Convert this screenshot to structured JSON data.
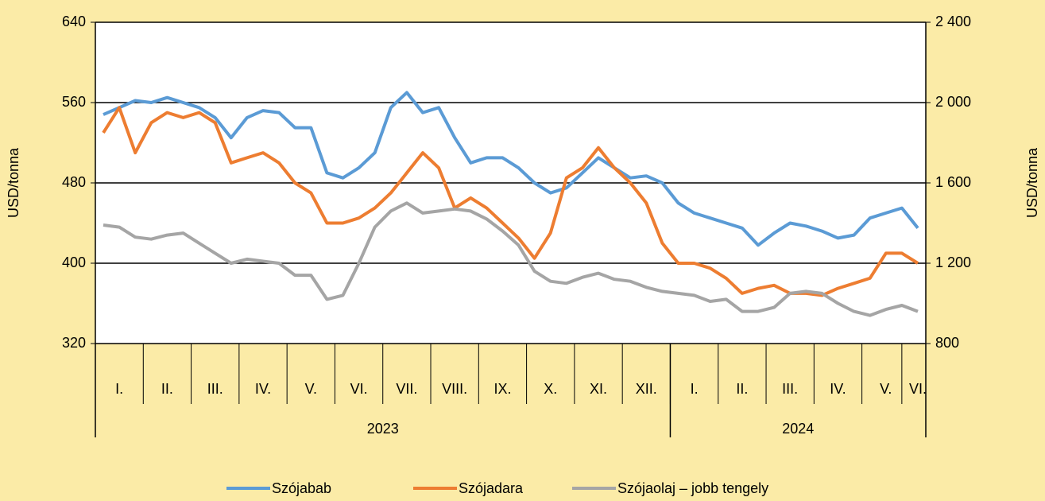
{
  "chart_data": {
    "type": "line",
    "ylabel": "USD/tonna",
    "y2label": "USD/tonna",
    "categories": [
      null,
      "I.",
      null,
      null,
      "II.",
      null,
      null,
      "III.",
      null,
      null,
      "IV.",
      null,
      null,
      "V.",
      null,
      null,
      "VI.",
      null,
      null,
      "VII.",
      null,
      null,
      "VIII.",
      null,
      null,
      "IX.",
      null,
      null,
      "X.",
      null,
      null,
      "XI.",
      null,
      null,
      "XII.",
      null,
      null,
      "I.",
      null,
      null,
      "II.",
      null,
      null,
      "III.",
      null,
      null,
      "IV.",
      null,
      null,
      "V.",
      null,
      "VI."
    ],
    "groups": [
      {
        "label": "2023",
        "count": 36
      },
      {
        "label": "2024",
        "count": 16
      }
    ],
    "ylim": [
      320,
      640
    ],
    "yticks": [
      320,
      400,
      480,
      560,
      640
    ],
    "y2lim": [
      800,
      2400
    ],
    "y2ticks": [
      800,
      {
        "value": 1200,
        "label": "1 200"
      },
      {
        "value": 1600,
        "label": "1 600"
      },
      {
        "value": 2000,
        "label": "2 000"
      },
      {
        "value": 2400,
        "label": "2 400"
      }
    ],
    "grid": true,
    "legend": "bottom",
    "series": [
      {
        "name": "Szójabab",
        "color": "#5b9bd5",
        "values": [
          548,
          555,
          562,
          560,
          565,
          560,
          555,
          545,
          525,
          545,
          552,
          550,
          535,
          535,
          490,
          485,
          495,
          510,
          555,
          570,
          550,
          555,
          525,
          500,
          505,
          505,
          495,
          480,
          470,
          475,
          490,
          505,
          495,
          485,
          487,
          480,
          460,
          450,
          445,
          440,
          435,
          418,
          430,
          440,
          437,
          432,
          425,
          428,
          445,
          450,
          455,
          435
        ]
      },
      {
        "name": "Szójadara",
        "color": "#ed7d31",
        "values": [
          530,
          555,
          510,
          540,
          550,
          545,
          550,
          540,
          500,
          505,
          510,
          500,
          480,
          470,
          440,
          440,
          445,
          455,
          470,
          490,
          510,
          495,
          455,
          465,
          455,
          440,
          425,
          405,
          430,
          485,
          495,
          515,
          495,
          480,
          460,
          420,
          400,
          400,
          395,
          385,
          370,
          375,
          378,
          370,
          370,
          368,
          375,
          380,
          385,
          410,
          410,
          400
        ]
      },
      {
        "name": "Szójaolaj – jobb tengely",
        "color": "#a5a5a5",
        "axis": "y2",
        "values": [
          1390,
          1380,
          1330,
          1320,
          1340,
          1350,
          1300,
          1250,
          1200,
          1220,
          1210,
          1200,
          1140,
          1140,
          1020,
          1040,
          1200,
          1380,
          1460,
          1500,
          1450,
          1460,
          1470,
          1460,
          1420,
          1360,
          1290,
          1160,
          1110,
          1100,
          1130,
          1150,
          1120,
          1110,
          1080,
          1060,
          1050,
          1040,
          1010,
          1020,
          960,
          960,
          980,
          1050,
          1060,
          1050,
          1000,
          960,
          940,
          970,
          990,
          960
        ]
      }
    ]
  }
}
